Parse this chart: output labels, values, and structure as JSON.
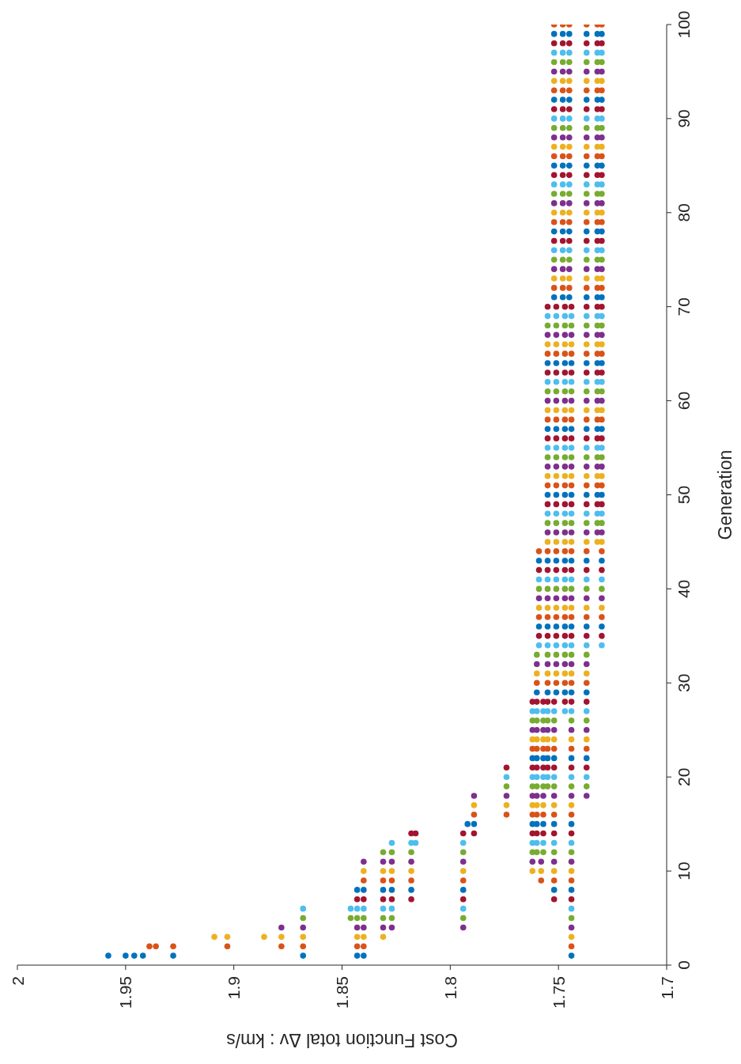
{
  "chart_data": {
    "type": "scatter",
    "xlabel": "Cost Function total Δv : km/s",
    "ylabel": "Generation",
    "xlim": [
      2,
      1.7
    ],
    "xticks": [
      2,
      1.95,
      1.9,
      1.85,
      1.8,
      1.75,
      1.7
    ],
    "ylim": [
      0,
      100
    ],
    "yticks": [
      0,
      10,
      20,
      30,
      40,
      50,
      60,
      70,
      80,
      90,
      100
    ],
    "marker": "circle",
    "series": [
      {
        "color": "#0072bd",
        "x": [
          1.958,
          1.95,
          1.946,
          1.942,
          1.928,
          1.868,
          1.843,
          1.84,
          1.744,
          1.843,
          1.84,
          1.831,
          1.827,
          1.818,
          1.794,
          1.752,
          1.744,
          1.792,
          1.789,
          1.762,
          1.76,
          1.757,
          1.752,
          1.744,
          1.762,
          1.76,
          1.757,
          1.755,
          1.752,
          1.744,
          1.737,
          1.76,
          1.755,
          1.751,
          1.747,
          1.744,
          1.737,
          1.759,
          1.755,
          1.751,
          1.747,
          1.744,
          1.737,
          1.73,
          1.759,
          1.755,
          1.751,
          1.747,
          1.744,
          1.737,
          1.73,
          1.755,
          1.751,
          1.747,
          1.744,
          1.737,
          1.732,
          1.73,
          1.755,
          1.751,
          1.747,
          1.744,
          1.737,
          1.732,
          1.73,
          1.755,
          1.751,
          1.747,
          1.744,
          1.737,
          1.732,
          1.73,
          1.752,
          1.748,
          1.745,
          1.737,
          1.732,
          1.73,
          1.752,
          1.748,
          1.745,
          1.737,
          1.732,
          1.73,
          1.752,
          1.748,
          1.745,
          1.737,
          1.732,
          1.73,
          1.752,
          1.748,
          1.745,
          1.737,
          1.732,
          1.73,
          1.752,
          1.748,
          1.745,
          1.737,
          1.732,
          1.73
        ],
        "values": [
          1,
          1,
          1,
          1,
          1,
          1,
          1,
          1,
          1,
          8,
          8,
          8,
          8,
          8,
          8,
          8,
          8,
          15,
          15,
          15,
          15,
          15,
          15,
          15,
          22,
          22,
          22,
          22,
          22,
          22,
          22,
          29,
          29,
          29,
          29,
          29,
          29,
          36,
          36,
          36,
          36,
          36,
          36,
          36,
          43,
          43,
          43,
          43,
          43,
          43,
          43,
          50,
          50,
          50,
          50,
          50,
          50,
          50,
          57,
          57,
          57,
          57,
          57,
          57,
          57,
          64,
          64,
          64,
          64,
          64,
          64,
          64,
          71,
          71,
          71,
          71,
          71,
          71,
          78,
          78,
          78,
          78,
          78,
          78,
          85,
          85,
          85,
          85,
          85,
          85,
          92,
          92,
          92,
          92,
          92,
          92,
          99,
          99,
          99,
          99,
          99,
          99
        ]
      },
      {
        "color": "#d95319",
        "x": [
          1.939,
          1.936,
          1.928,
          1.903,
          1.878,
          1.868,
          1.843,
          1.84,
          1.744,
          1.84,
          1.831,
          1.827,
          1.818,
          1.794,
          1.758,
          1.752,
          1.744,
          1.789,
          1.774,
          1.762,
          1.76,
          1.757,
          1.752,
          1.744,
          1.762,
          1.76,
          1.757,
          1.755,
          1.752,
          1.744,
          1.737,
          1.76,
          1.755,
          1.751,
          1.747,
          1.744,
          1.737,
          1.759,
          1.755,
          1.751,
          1.747,
          1.744,
          1.737,
          1.73,
          1.759,
          1.755,
          1.751,
          1.747,
          1.744,
          1.737,
          1.73,
          1.755,
          1.751,
          1.747,
          1.744,
          1.737,
          1.732,
          1.73,
          1.755,
          1.751,
          1.747,
          1.744,
          1.737,
          1.732,
          1.73,
          1.755,
          1.751,
          1.747,
          1.744,
          1.737,
          1.732,
          1.73,
          1.752,
          1.748,
          1.745,
          1.737,
          1.732,
          1.73,
          1.752,
          1.748,
          1.745,
          1.737,
          1.732,
          1.73,
          1.752,
          1.748,
          1.745,
          1.737,
          1.732,
          1.73,
          1.752,
          1.748,
          1.745,
          1.737,
          1.732,
          1.73,
          1.752,
          1.748,
          1.745,
          1.737,
          1.732,
          1.73
        ],
        "values": [
          2,
          2,
          2,
          2,
          2,
          2,
          2,
          2,
          2,
          9,
          9,
          9,
          9,
          9,
          9,
          9,
          9,
          16,
          16,
          16,
          16,
          16,
          16,
          16,
          23,
          23,
          23,
          23,
          23,
          23,
          23,
          30,
          30,
          30,
          30,
          30,
          30,
          37,
          37,
          37,
          37,
          37,
          37,
          37,
          44,
          44,
          44,
          44,
          44,
          44,
          44,
          51,
          51,
          51,
          51,
          51,
          51,
          51,
          58,
          58,
          58,
          58,
          58,
          58,
          58,
          65,
          65,
          65,
          65,
          65,
          65,
          65,
          72,
          72,
          72,
          72,
          72,
          72,
          79,
          79,
          79,
          79,
          79,
          79,
          86,
          86,
          86,
          86,
          86,
          86,
          93,
          93,
          93,
          93,
          93,
          93,
          100,
          100,
          100,
          100,
          100,
          100
        ]
      },
      {
        "color": "#edb120",
        "x": [
          1.909,
          1.903,
          1.886,
          1.878,
          1.868,
          1.843,
          1.84,
          1.831,
          1.744,
          1.84,
          1.831,
          1.827,
          1.818,
          1.794,
          1.762,
          1.758,
          1.752,
          1.744,
          1.789,
          1.774,
          1.762,
          1.76,
          1.757,
          1.752,
          1.744,
          1.762,
          1.76,
          1.757,
          1.755,
          1.752,
          1.744,
          1.737,
          1.76,
          1.755,
          1.751,
          1.747,
          1.744,
          1.737,
          1.759,
          1.755,
          1.751,
          1.747,
          1.744,
          1.737,
          1.73,
          1.755,
          1.751,
          1.747,
          1.744,
          1.737,
          1.732,
          1.73,
          1.755,
          1.751,
          1.747,
          1.744,
          1.737,
          1.732,
          1.73,
          1.755,
          1.751,
          1.747,
          1.744,
          1.737,
          1.732,
          1.73,
          1.755,
          1.751,
          1.747,
          1.744,
          1.737,
          1.732,
          1.73,
          1.752,
          1.748,
          1.745,
          1.737,
          1.732,
          1.73,
          1.752,
          1.748,
          1.745,
          1.737,
          1.732,
          1.73,
          1.752,
          1.748,
          1.745,
          1.737,
          1.732,
          1.73,
          1.752,
          1.748,
          1.745,
          1.737,
          1.732,
          1.73
        ],
        "values": [
          3,
          3,
          3,
          3,
          3,
          3,
          3,
          3,
          3,
          10,
          10,
          10,
          10,
          10,
          10,
          10,
          10,
          10,
          17,
          17,
          17,
          17,
          17,
          17,
          17,
          24,
          24,
          24,
          24,
          24,
          24,
          24,
          31,
          31,
          31,
          31,
          31,
          31,
          38,
          38,
          38,
          38,
          38,
          38,
          38,
          45,
          45,
          45,
          45,
          45,
          45,
          45,
          52,
          52,
          52,
          52,
          52,
          52,
          52,
          59,
          59,
          59,
          59,
          59,
          59,
          59,
          66,
          66,
          66,
          66,
          66,
          66,
          66,
          73,
          73,
          73,
          73,
          73,
          73,
          80,
          80,
          80,
          80,
          80,
          80,
          87,
          87,
          87,
          87,
          87,
          87,
          94,
          94,
          94,
          94,
          94,
          94
        ]
      },
      {
        "color": "#7e2f8e",
        "x": [
          1.878,
          1.868,
          1.843,
          1.84,
          1.831,
          1.827,
          1.794,
          1.744,
          1.84,
          1.831,
          1.827,
          1.818,
          1.794,
          1.762,
          1.758,
          1.752,
          1.744,
          1.789,
          1.774,
          1.762,
          1.76,
          1.757,
          1.752,
          1.744,
          1.737,
          1.762,
          1.76,
          1.757,
          1.755,
          1.752,
          1.744,
          1.737,
          1.76,
          1.755,
          1.751,
          1.747,
          1.744,
          1.737,
          1.759,
          1.755,
          1.751,
          1.747,
          1.744,
          1.737,
          1.73,
          1.755,
          1.751,
          1.747,
          1.744,
          1.737,
          1.732,
          1.73,
          1.755,
          1.751,
          1.747,
          1.744,
          1.737,
          1.732,
          1.73,
          1.755,
          1.751,
          1.747,
          1.744,
          1.737,
          1.732,
          1.73,
          1.755,
          1.751,
          1.747,
          1.744,
          1.737,
          1.732,
          1.73,
          1.752,
          1.748,
          1.745,
          1.737,
          1.732,
          1.73,
          1.752,
          1.748,
          1.745,
          1.737,
          1.732,
          1.73,
          1.752,
          1.748,
          1.745,
          1.737,
          1.732,
          1.73,
          1.752,
          1.748,
          1.745,
          1.737,
          1.732,
          1.73
        ],
        "values": [
          4,
          4,
          4,
          4,
          4,
          4,
          4,
          4,
          11,
          11,
          11,
          11,
          11,
          11,
          11,
          11,
          11,
          18,
          18,
          18,
          18,
          18,
          18,
          18,
          18,
          25,
          25,
          25,
          25,
          25,
          25,
          25,
          32,
          32,
          32,
          32,
          32,
          32,
          39,
          39,
          39,
          39,
          39,
          39,
          39,
          46,
          46,
          46,
          46,
          46,
          46,
          46,
          53,
          53,
          53,
          53,
          53,
          53,
          53,
          60,
          60,
          60,
          60,
          60,
          60,
          60,
          67,
          67,
          67,
          67,
          67,
          67,
          67,
          74,
          74,
          74,
          74,
          74,
          74,
          81,
          81,
          81,
          81,
          81,
          81,
          88,
          88,
          88,
          88,
          88,
          88,
          95,
          95,
          95,
          95,
          95,
          95
        ]
      },
      {
        "color": "#77ac30",
        "x": [
          1.868,
          1.846,
          1.843,
          1.84,
          1.831,
          1.827,
          1.794,
          1.744,
          1.831,
          1.827,
          1.818,
          1.794,
          1.762,
          1.76,
          1.757,
          1.752,
          1.744,
          1.774,
          1.762,
          1.76,
          1.757,
          1.755,
          1.752,
          1.744,
          1.737,
          1.762,
          1.76,
          1.757,
          1.755,
          1.752,
          1.744,
          1.737,
          1.76,
          1.755,
          1.751,
          1.747,
          1.744,
          1.737,
          1.759,
          1.755,
          1.751,
          1.747,
          1.744,
          1.737,
          1.73,
          1.755,
          1.751,
          1.747,
          1.744,
          1.737,
          1.732,
          1.73,
          1.755,
          1.751,
          1.747,
          1.744,
          1.737,
          1.732,
          1.73,
          1.755,
          1.751,
          1.747,
          1.744,
          1.737,
          1.732,
          1.73,
          1.755,
          1.751,
          1.747,
          1.744,
          1.737,
          1.732,
          1.73,
          1.752,
          1.748,
          1.745,
          1.737,
          1.732,
          1.73,
          1.752,
          1.748,
          1.745,
          1.737,
          1.732,
          1.73,
          1.752,
          1.748,
          1.745,
          1.737,
          1.732,
          1.73,
          1.752,
          1.748,
          1.745,
          1.737,
          1.732,
          1.73
        ],
        "values": [
          5,
          5,
          5,
          5,
          5,
          5,
          5,
          5,
          12,
          12,
          12,
          12,
          12,
          12,
          12,
          12,
          12,
          19,
          19,
          19,
          19,
          19,
          19,
          19,
          19,
          26,
          26,
          26,
          26,
          26,
          26,
          26,
          33,
          33,
          33,
          33,
          33,
          33,
          40,
          40,
          40,
          40,
          40,
          40,
          40,
          47,
          47,
          47,
          47,
          47,
          47,
          47,
          54,
          54,
          54,
          54,
          54,
          54,
          54,
          61,
          61,
          61,
          61,
          61,
          61,
          61,
          68,
          68,
          68,
          68,
          68,
          68,
          68,
          75,
          75,
          75,
          75,
          75,
          75,
          82,
          82,
          82,
          82,
          82,
          82,
          89,
          89,
          89,
          89,
          89,
          89,
          96,
          96,
          96,
          96,
          96,
          96
        ]
      },
      {
        "color": "#4dbeee",
        "x": [
          1.868,
          1.846,
          1.843,
          1.84,
          1.831,
          1.827,
          1.794,
          1.744,
          1.827,
          1.818,
          1.816,
          1.794,
          1.762,
          1.76,
          1.757,
          1.752,
          1.744,
          1.774,
          1.762,
          1.76,
          1.757,
          1.755,
          1.752,
          1.744,
          1.737,
          1.762,
          1.76,
          1.757,
          1.755,
          1.752,
          1.747,
          1.744,
          1.737,
          1.759,
          1.755,
          1.751,
          1.747,
          1.744,
          1.737,
          1.73,
          1.759,
          1.755,
          1.751,
          1.747,
          1.744,
          1.737,
          1.73,
          1.755,
          1.751,
          1.747,
          1.744,
          1.737,
          1.732,
          1.73,
          1.755,
          1.751,
          1.747,
          1.744,
          1.737,
          1.732,
          1.73,
          1.755,
          1.751,
          1.747,
          1.744,
          1.737,
          1.732,
          1.73,
          1.755,
          1.751,
          1.747,
          1.744,
          1.737,
          1.732,
          1.73,
          1.752,
          1.748,
          1.745,
          1.737,
          1.732,
          1.73,
          1.752,
          1.748,
          1.745,
          1.737,
          1.732,
          1.73,
          1.752,
          1.748,
          1.745,
          1.737,
          1.732,
          1.73,
          1.752,
          1.748,
          1.745,
          1.737,
          1.732,
          1.73
        ],
        "values": [
          6,
          6,
          6,
          6,
          6,
          6,
          6,
          6,
          13,
          13,
          13,
          13,
          13,
          13,
          13,
          13,
          13,
          20,
          20,
          20,
          20,
          20,
          20,
          20,
          20,
          27,
          27,
          27,
          27,
          27,
          27,
          27,
          27,
          34,
          34,
          34,
          34,
          34,
          34,
          34,
          41,
          41,
          41,
          41,
          41,
          41,
          41,
          48,
          48,
          48,
          48,
          48,
          48,
          48,
          55,
          55,
          55,
          55,
          55,
          55,
          55,
          62,
          62,
          62,
          62,
          62,
          62,
          62,
          69,
          69,
          69,
          69,
          69,
          69,
          69,
          76,
          76,
          76,
          76,
          76,
          76,
          83,
          83,
          83,
          83,
          83,
          83,
          90,
          90,
          90,
          90,
          90,
          90,
          97,
          97,
          97,
          97,
          97,
          97
        ]
      },
      {
        "color": "#a2142f",
        "x": [
          1.843,
          1.84,
          1.831,
          1.827,
          1.818,
          1.794,
          1.752,
          1.744,
          1.818,
          1.816,
          1.794,
          1.789,
          1.762,
          1.76,
          1.757,
          1.752,
          1.744,
          1.774,
          1.762,
          1.76,
          1.757,
          1.755,
          1.752,
          1.744,
          1.737,
          1.762,
          1.76,
          1.757,
          1.755,
          1.752,
          1.747,
          1.744,
          1.737,
          1.759,
          1.755,
          1.751,
          1.747,
          1.744,
          1.737,
          1.73,
          1.759,
          1.755,
          1.751,
          1.747,
          1.744,
          1.737,
          1.73,
          1.755,
          1.751,
          1.747,
          1.744,
          1.737,
          1.732,
          1.73,
          1.755,
          1.751,
          1.747,
          1.744,
          1.737,
          1.732,
          1.73,
          1.755,
          1.751,
          1.747,
          1.744,
          1.737,
          1.732,
          1.73,
          1.755,
          1.751,
          1.747,
          1.744,
          1.737,
          1.732,
          1.73,
          1.752,
          1.748,
          1.745,
          1.737,
          1.732,
          1.73,
          1.752,
          1.748,
          1.745,
          1.737,
          1.732,
          1.73,
          1.752,
          1.748,
          1.745,
          1.737,
          1.732,
          1.73,
          1.752,
          1.748,
          1.745,
          1.737,
          1.732,
          1.73
        ],
        "values": [
          7,
          7,
          7,
          7,
          7,
          7,
          7,
          7,
          14,
          14,
          14,
          14,
          14,
          14,
          14,
          14,
          14,
          21,
          21,
          21,
          21,
          21,
          21,
          21,
          21,
          28,
          28,
          28,
          28,
          28,
          28,
          28,
          28,
          35,
          35,
          35,
          35,
          35,
          35,
          35,
          42,
          42,
          42,
          42,
          42,
          42,
          42,
          49,
          49,
          49,
          49,
          49,
          49,
          49,
          56,
          56,
          56,
          56,
          56,
          56,
          56,
          63,
          63,
          63,
          63,
          63,
          63,
          63,
          70,
          70,
          70,
          70,
          70,
          70,
          70,
          77,
          77,
          77,
          77,
          77,
          77,
          84,
          84,
          84,
          84,
          84,
          84,
          91,
          91,
          91,
          91,
          91,
          91,
          98,
          98,
          98,
          98,
          98,
          98
        ]
      }
    ]
  }
}
